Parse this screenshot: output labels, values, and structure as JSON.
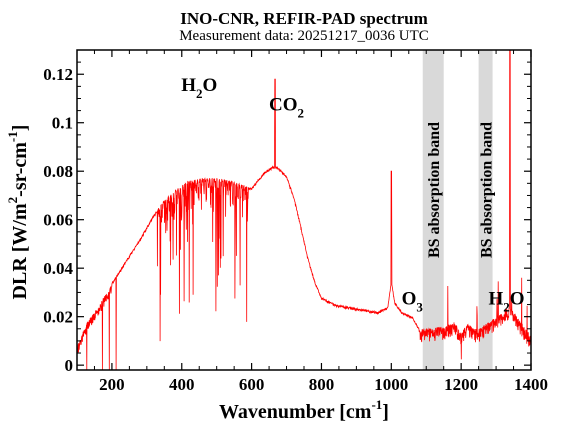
{
  "chart_data": {
    "type": "line",
    "title": "INO-CNR, REFIR-PAD spectrum",
    "subtitle": "Measurement data: 20251217_0036 UTC",
    "xlabel": {
      "main": "Wavenumber [cm",
      "sup": "-1",
      "tail": "]"
    },
    "ylabel": {
      "pre": "DLR [W/m",
      "sup1": "2",
      "mid": "-sr-cm",
      "sup2": "-1",
      "tail": "]"
    },
    "xlim": [
      100,
      1400
    ],
    "ylim": [
      -0.002,
      0.13
    ],
    "x_ticks": [
      200,
      400,
      600,
      800,
      1000,
      1200,
      1400
    ],
    "x_tick_labels": [
      "200",
      "400",
      "600",
      "800",
      "1000",
      "1200",
      "1400"
    ],
    "y_ticks": [
      0,
      0.02,
      0.04,
      0.06,
      0.08,
      0.1,
      0.12
    ],
    "y_tick_labels": [
      "0",
      "0.02",
      "0.04",
      "0.06",
      "0.08",
      "0.1",
      "0.12"
    ],
    "grid": false,
    "line_color": "#ff0000",
    "band_color": "#d9d9d9",
    "series": [
      {
        "x": [
          100,
          130,
          160,
          200,
          240,
          280,
          320,
          350,
          380,
          420,
          460,
          500,
          540,
          580,
          600,
          620,
          640,
          660,
          670,
          680,
          700,
          720,
          740,
          760,
          780,
          800,
          840,
          880,
          920,
          960,
          990,
          1000,
          1010,
          1030,
          1060,
          1080,
          1090,
          1150,
          1180,
          1200,
          1220,
          1240,
          1250,
          1300,
          1320,
          1340,
          1360,
          1380,
          1400
        ],
        "y": [
          0.008,
          0.018,
          0.024,
          0.034,
          0.043,
          0.052,
          0.062,
          0.068,
          0.072,
          0.076,
          0.077,
          0.077,
          0.076,
          0.074,
          0.073,
          0.077,
          0.08,
          0.082,
          0.082,
          0.081,
          0.078,
          0.07,
          0.058,
          0.045,
          0.035,
          0.028,
          0.025,
          0.024,
          0.023,
          0.022,
          0.024,
          0.035,
          0.026,
          0.022,
          0.02,
          0.015,
          0.015,
          0.016,
          0.018,
          0.014,
          0.017,
          0.015,
          0.015,
          0.02,
          0.022,
          0.025,
          0.02,
          0.016,
          0.012
        ]
      }
    ],
    "absorption_bands": [
      {
        "from": 1090,
        "to": 1150,
        "label": "BS absorption band"
      },
      {
        "from": 1250,
        "to": 1290,
        "label": "BS absorption band"
      }
    ],
    "annotations": [
      {
        "main": "H",
        "sub": "2",
        "tail": "O",
        "x": 450,
        "y": 0.113
      },
      {
        "main": "CO",
        "sub": "2",
        "tail": "",
        "x": 700,
        "y": 0.105
      },
      {
        "main": "O",
        "sub": "3",
        "tail": "",
        "x": 1060,
        "y": 0.025
      },
      {
        "main": "H",
        "sub": "2",
        "tail": "O",
        "x": 1330,
        "y": 0.025
      }
    ]
  }
}
